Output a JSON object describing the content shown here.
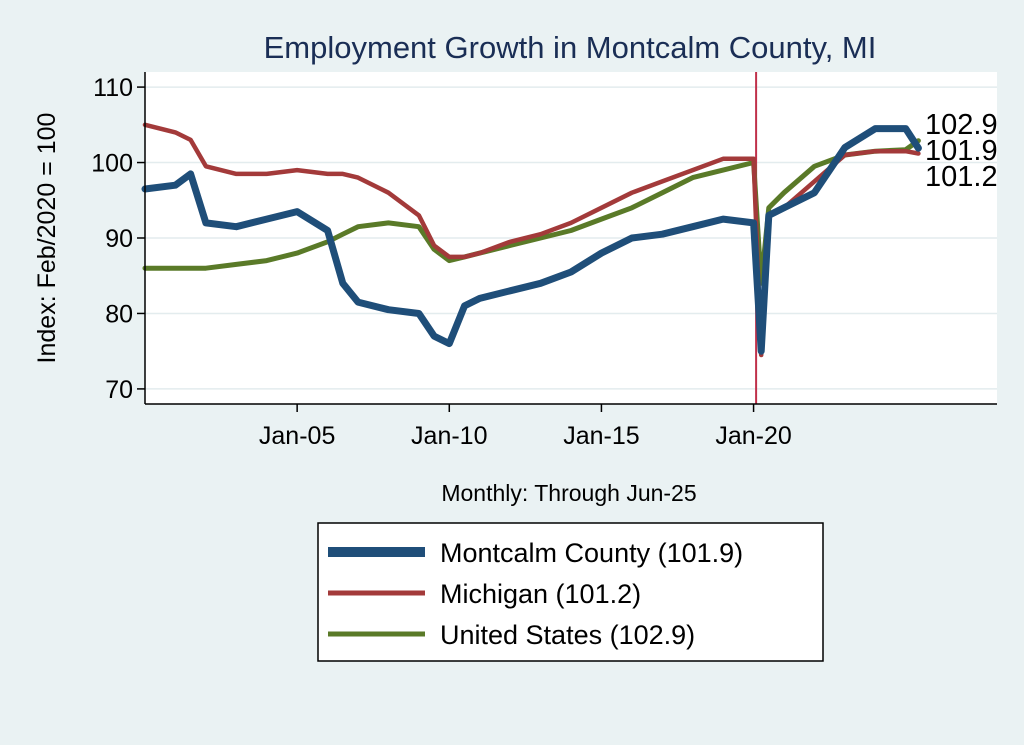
{
  "chart_data": {
    "type": "line",
    "title": "Employment Growth in Montcalm  County, MI",
    "xlabel": "Monthly: Through Jun-25",
    "ylabel": "Index: Feb/2020 = 100",
    "x_ticks": [
      "Jan-05",
      "Jan-10",
      "Jan-15",
      "Jan-20"
    ],
    "y_ticks": [
      70,
      80,
      90,
      100,
      110
    ],
    "ylim": [
      68,
      112
    ],
    "xlim": [
      "Jan-00",
      "Jan-28"
    ],
    "grid": "horizontal",
    "reference_line": {
      "x": "Feb-20",
      "color": "#c0304a"
    },
    "legend_position": "bottom",
    "end_labels": [
      "102.9",
      "101.9",
      "101.2"
    ],
    "x": [
      "Jan-00",
      "Jan-01",
      "Jul-01",
      "Jan-02",
      "Jan-03",
      "Jan-04",
      "Jan-05",
      "Jan-06",
      "Jul-06",
      "Jan-07",
      "Jan-08",
      "Jan-09",
      "Jul-09",
      "Jan-10",
      "Jul-10",
      "Jan-11",
      "Jan-12",
      "Jan-13",
      "Jan-14",
      "Jan-15",
      "Jan-16",
      "Jan-17",
      "Jan-18",
      "Jan-19",
      "Jan-20",
      "Apr-20",
      "Jul-20",
      "Jan-21",
      "Jan-22",
      "Jan-23",
      "Jan-24",
      "Jan-25",
      "Jun-25"
    ],
    "series": [
      {
        "name": "Montcalm  County (101.9)",
        "color": "#1f4e79",
        "values": [
          96.5,
          97,
          98.5,
          92,
          91.5,
          92.5,
          93.5,
          91,
          84,
          81.5,
          80.5,
          80,
          77,
          76,
          81,
          82,
          83,
          84,
          85.5,
          88,
          90,
          90.5,
          91.5,
          92.5,
          92,
          75,
          93,
          94,
          96,
          102,
          104.5,
          104.5,
          101.9
        ]
      },
      {
        "name": "Michigan (101.2)",
        "color": "#a33a3a",
        "values": [
          105,
          104,
          103,
          99.5,
          98.5,
          98.5,
          99,
          98.5,
          98.5,
          98,
          96,
          93,
          89,
          87.5,
          87.5,
          88,
          89.5,
          90.5,
          92,
          94,
          96,
          97.5,
          99,
          100.5,
          100.5,
          74.5,
          93,
          94,
          97.5,
          101,
          101.5,
          101.5,
          101.2
        ]
      },
      {
        "name": "United States (102.9)",
        "color": "#5a7a28",
        "values": [
          86,
          86,
          86,
          86,
          86.5,
          87,
          88,
          89.5,
          90.5,
          91.5,
          92,
          91.5,
          88.5,
          87,
          87.5,
          88,
          89,
          90,
          91,
          92.5,
          94,
          96,
          98,
          99,
          100,
          84,
          94,
          96,
          99.5,
          101,
          101.5,
          101.7,
          102.9
        ]
      }
    ]
  }
}
